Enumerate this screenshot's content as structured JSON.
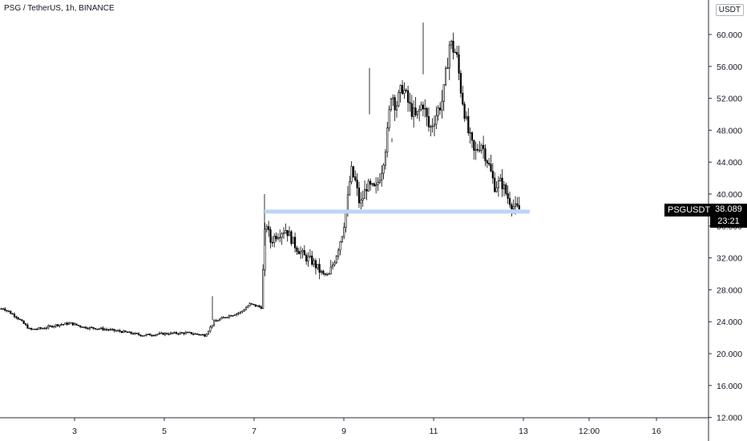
{
  "chart_data": {
    "type": "candlestick",
    "title": "PSG / TetherUS, 1h, BINANCE",
    "symbol": "PSGUSDT",
    "unit": "USDT",
    "last_price": "38.089",
    "countdown": "23:21",
    "y_ticks": [
      "60.000",
      "56.000",
      "52.000",
      "48.000",
      "44.000",
      "40.000",
      "36.000",
      "32.000",
      "28.000",
      "24.000",
      "20.000",
      "16.000",
      "12.000"
    ],
    "x_ticks": [
      "3",
      "5",
      "7",
      "9",
      "11",
      "13",
      "12:00",
      "16"
    ],
    "ylim": [
      12,
      64
    ],
    "support_level": 37.8,
    "price_path": [
      {
        "t": 1.0,
        "p": 25.0
      },
      {
        "t": 1.4,
        "p": 25.7
      },
      {
        "t": 1.7,
        "p": 24.6
      },
      {
        "t": 2.0,
        "p": 23.0
      },
      {
        "t": 2.3,
        "p": 23.2
      },
      {
        "t": 2.6,
        "p": 23.6
      },
      {
        "t": 2.9,
        "p": 23.8
      },
      {
        "t": 3.2,
        "p": 23.3
      },
      {
        "t": 3.6,
        "p": 23.1
      },
      {
        "t": 4.0,
        "p": 22.8
      },
      {
        "t": 4.5,
        "p": 22.3
      },
      {
        "t": 5.0,
        "p": 22.5
      },
      {
        "t": 5.5,
        "p": 22.6
      },
      {
        "t": 5.9,
        "p": 22.3
      },
      {
        "t": 6.1,
        "p": 24.0
      },
      {
        "t": 6.4,
        "p": 24.7
      },
      {
        "t": 6.7,
        "p": 25.2
      },
      {
        "t": 6.9,
        "p": 26.2
      },
      {
        "t": 7.15,
        "p": 25.8
      },
      {
        "t": 7.25,
        "p": 37.0
      },
      {
        "t": 7.35,
        "p": 34.0
      },
      {
        "t": 7.5,
        "p": 35.0
      },
      {
        "t": 7.7,
        "p": 35.6
      },
      {
        "t": 7.9,
        "p": 33.6
      },
      {
        "t": 8.1,
        "p": 32.2
      },
      {
        "t": 8.3,
        "p": 31.5
      },
      {
        "t": 8.5,
        "p": 30.0
      },
      {
        "t": 8.65,
        "p": 29.8
      },
      {
        "t": 8.8,
        "p": 32.0
      },
      {
        "t": 8.95,
        "p": 35.0
      },
      {
        "t": 9.05,
        "p": 38.0
      },
      {
        "t": 9.15,
        "p": 43.0
      },
      {
        "t": 9.25,
        "p": 41.5
      },
      {
        "t": 9.35,
        "p": 38.5
      },
      {
        "t": 9.5,
        "p": 41.0
      },
      {
        "t": 9.7,
        "p": 40.5
      },
      {
        "t": 9.85,
        "p": 43.5
      },
      {
        "t": 9.95,
        "p": 47.0
      },
      {
        "t": 10.05,
        "p": 53.0
      },
      {
        "t": 10.15,
        "p": 51.0
      },
      {
        "t": 10.3,
        "p": 53.5
      },
      {
        "t": 10.45,
        "p": 51.0
      },
      {
        "t": 10.6,
        "p": 49.5
      },
      {
        "t": 10.75,
        "p": 51.5
      },
      {
        "t": 10.9,
        "p": 48.0
      },
      {
        "t": 11.05,
        "p": 50.0
      },
      {
        "t": 11.2,
        "p": 52.0
      },
      {
        "t": 11.35,
        "p": 59.0
      },
      {
        "t": 11.5,
        "p": 57.5
      },
      {
        "t": 11.6,
        "p": 53.0
      },
      {
        "t": 11.75,
        "p": 48.0
      },
      {
        "t": 11.9,
        "p": 45.0
      },
      {
        "t": 12.05,
        "p": 46.5
      },
      {
        "t": 12.2,
        "p": 44.0
      },
      {
        "t": 12.35,
        "p": 41.0
      },
      {
        "t": 12.5,
        "p": 41.5
      },
      {
        "t": 12.65,
        "p": 39.5
      },
      {
        "t": 12.8,
        "p": 38.2
      },
      {
        "t": 12.9,
        "p": 38.089
      }
    ],
    "grid": false
  },
  "colors": {
    "candle": "#000000",
    "support": "#bbd5f5",
    "axis": "#131722"
  }
}
